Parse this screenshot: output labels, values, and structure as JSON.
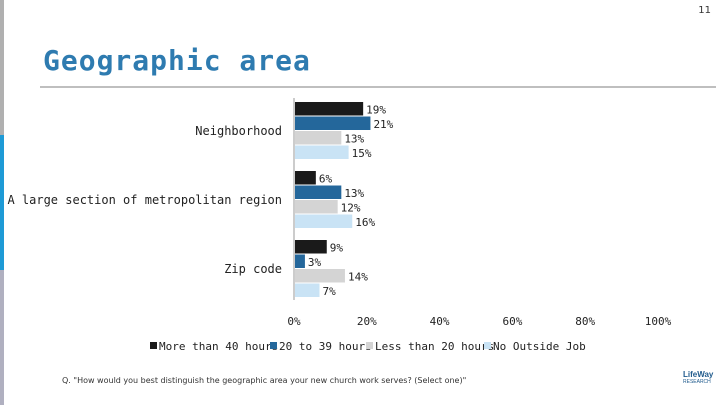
{
  "page_number": "11",
  "title": "Geographic area",
  "footnote": "Q. \"How would you best distinguish the geographic area your new church work serves? (Select one)\"",
  "logo": {
    "line1": "LifeWay",
    "line2": "RESEARCH"
  },
  "colors": {
    "title": "#2e7bb0",
    "accent_blue": "#1e9ad6",
    "gray_bar": "#c8c8c8"
  },
  "chart_data": {
    "type": "bar",
    "orientation": "horizontal",
    "categories": [
      "Neighborhood",
      "A large section of metropolitan region",
      "Zip code"
    ],
    "series": [
      {
        "name": "More than 40 hours",
        "color": "#1a1a1a",
        "values": [
          19,
          6,
          9
        ],
        "labels": [
          "19%",
          "6%",
          "9%"
        ]
      },
      {
        "name": "20 to 39 hours",
        "color": "#24679b",
        "values": [
          21,
          13,
          3
        ],
        "labels": [
          "21%",
          "13%",
          "3%"
        ]
      },
      {
        "name": "Less than 20 hours",
        "color": "#d4d4d4",
        "values": [
          13,
          12,
          14
        ],
        "labels": [
          "13%",
          "12%",
          "14%"
        ]
      },
      {
        "name": "No Outside Job",
        "color": "#c9e3f5",
        "values": [
          15,
          16,
          7
        ],
        "labels": [
          "15%",
          "16%",
          "7%"
        ]
      }
    ],
    "x_ticks": [
      "0%",
      "20%",
      "40%",
      "60%",
      "80%",
      "100%"
    ],
    "xlim": [
      0,
      100
    ],
    "legend": "bottom",
    "grid": false
  }
}
